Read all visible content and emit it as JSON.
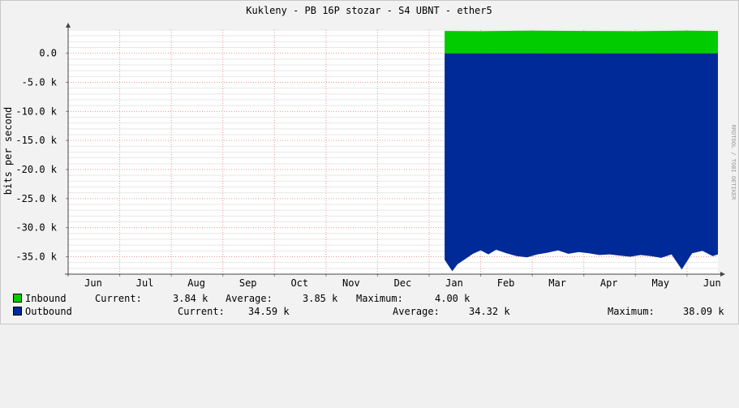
{
  "chart_data": {
    "type": "area",
    "title": "Kukleny - PB 16P stozar - S4 UBNT - ether5",
    "ylabel": "bits per second",
    "watermark": "RRDTOOL / TOBI OETIKER",
    "x_ticks": [
      "Jun",
      "Jul",
      "Aug",
      "Sep",
      "Oct",
      "Nov",
      "Dec",
      "Jan",
      "Feb",
      "Mar",
      "Apr",
      "May",
      "Jun"
    ],
    "y_ticks": [
      "0.0",
      "-5.0 k",
      "-10.0 k",
      "-15.0 k",
      "-20.0 k",
      "-25.0 k",
      "-30.0 k",
      "-35.0 k"
    ],
    "y_tick_values": [
      0,
      -5000,
      -10000,
      -15000,
      -20000,
      -25000,
      -30000,
      -35000
    ],
    "ylim": [
      -38000,
      4000
    ],
    "x_range_months": [
      0,
      12.6
    ],
    "data_start_month": 7.3,
    "data_end_month": 12.6,
    "grid": true,
    "series": [
      {
        "name": "Inbound",
        "color": "#00cc00",
        "x": [
          7.3,
          8,
          9,
          10,
          11,
          12,
          12.6
        ],
        "values": [
          3850,
          3800,
          3900,
          3850,
          3800,
          3900,
          3840
        ]
      },
      {
        "name": "Outbound",
        "color": "#002a97",
        "x": [
          7.3,
          7.35,
          7.45,
          7.55,
          7.7,
          7.85,
          8.0,
          8.15,
          8.3,
          8.5,
          8.7,
          8.9,
          9.1,
          9.3,
          9.5,
          9.7,
          9.9,
          10.1,
          10.3,
          10.5,
          10.7,
          10.9,
          11.1,
          11.3,
          11.5,
          11.7,
          11.9,
          12.1,
          12.3,
          12.5,
          12.6
        ],
        "values": [
          -35500,
          -36200,
          -37500,
          -36300,
          -35400,
          -34500,
          -33900,
          -34600,
          -33800,
          -34400,
          -34900,
          -35100,
          -34600,
          -34300,
          -33900,
          -34500,
          -34200,
          -34400,
          -34700,
          -34600,
          -34800,
          -35000,
          -34700,
          -34900,
          -35200,
          -34600,
          -37200,
          -34400,
          -34000,
          -34900,
          -34600
        ]
      }
    ]
  },
  "legend": {
    "inbound": {
      "label": "Inbound",
      "current_label": "Current:",
      "current": "3.84 k",
      "average_label": "Average:",
      "average": "3.85 k",
      "maximum_label": "Maximum:",
      "maximum": "4.00 k",
      "color": "#00cc00"
    },
    "outbound": {
      "label": "Outbound",
      "current_label": "Current:",
      "current": "34.59 k",
      "average_label": "Average:",
      "average": "34.32 k",
      "maximum_label": "Maximum:",
      "maximum": "38.09 k",
      "color": "#002a97"
    }
  }
}
